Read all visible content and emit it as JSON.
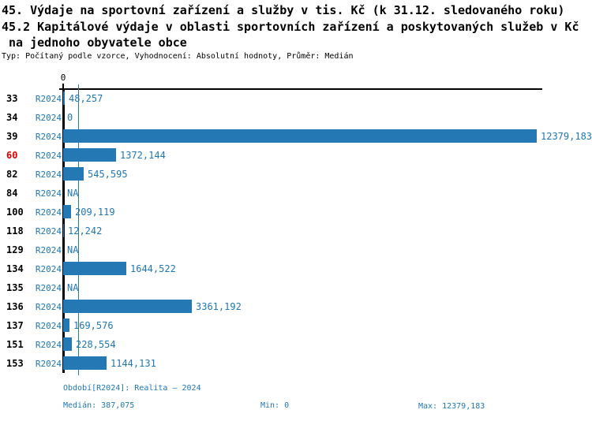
{
  "header": {
    "title_line1": "45. Výdaje na sportovní zařízení a služby v tis. Kč (k 31.12. sledovaného roku)",
    "title_line2": "45.2 Kapitálové výdaje v oblasti sportovních zařízení a poskytovaných služeb v Kč",
    "title_line3": " na jednoho obyvatele obce",
    "subtitle": "Typ: Počítaný podle vzorce, Vyhodnocení: Absolutní hodnoty, Průměr: Medián"
  },
  "chart_data": {
    "type": "bar",
    "orientation": "horizontal",
    "title": "45.2 Kapitálové výdaje v oblasti sportovních zařízení a poskytovaných služeb v Kč na jednoho obyvatele obce",
    "zero_tick_label": "0",
    "series_label": "R2024",
    "xlim": [
      0,
      12379.183
    ],
    "median_value": 387.075,
    "max_value": 12379.183,
    "min_value": 0,
    "grid": false,
    "colors": {
      "bar": "#2478b4",
      "value_text": "#1f77b4",
      "row_number": "#000000",
      "row_number_highlight": "#e00000",
      "axis": "#000000",
      "median_line": "#2478b4"
    },
    "rows": [
      {
        "id": "33",
        "value": 48.257,
        "value_label": "48,257",
        "highlight": false
      },
      {
        "id": "34",
        "value": 0,
        "value_label": "0",
        "highlight": false
      },
      {
        "id": "39",
        "value": 12379.183,
        "value_label": "12379,183",
        "highlight": false
      },
      {
        "id": "60",
        "value": 1372.144,
        "value_label": "1372,144",
        "highlight": true
      },
      {
        "id": "82",
        "value": 545.595,
        "value_label": "545,595",
        "highlight": false
      },
      {
        "id": "84",
        "value": null,
        "value_label": "NA",
        "highlight": false
      },
      {
        "id": "100",
        "value": 209.119,
        "value_label": "209,119",
        "highlight": false
      },
      {
        "id": "118",
        "value": 12.242,
        "value_label": "12,242",
        "highlight": false
      },
      {
        "id": "129",
        "value": null,
        "value_label": "NA",
        "highlight": false
      },
      {
        "id": "134",
        "value": 1644.522,
        "value_label": "1644,522",
        "highlight": false
      },
      {
        "id": "135",
        "value": null,
        "value_label": "NA",
        "highlight": false
      },
      {
        "id": "136",
        "value": 3361.192,
        "value_label": "3361,192",
        "highlight": false
      },
      {
        "id": "137",
        "value": 169.576,
        "value_label": "169,576",
        "highlight": false
      },
      {
        "id": "151",
        "value": 228.554,
        "value_label": "228,554",
        "highlight": false
      },
      {
        "id": "153",
        "value": 1144.131,
        "value_label": "1144,131",
        "highlight": false
      }
    ]
  },
  "footer": {
    "period": "Období[R2024]: Realita – 2024",
    "median": "Medián: 387,075",
    "min": "Min: 0",
    "max": "Max: 12379,183"
  }
}
